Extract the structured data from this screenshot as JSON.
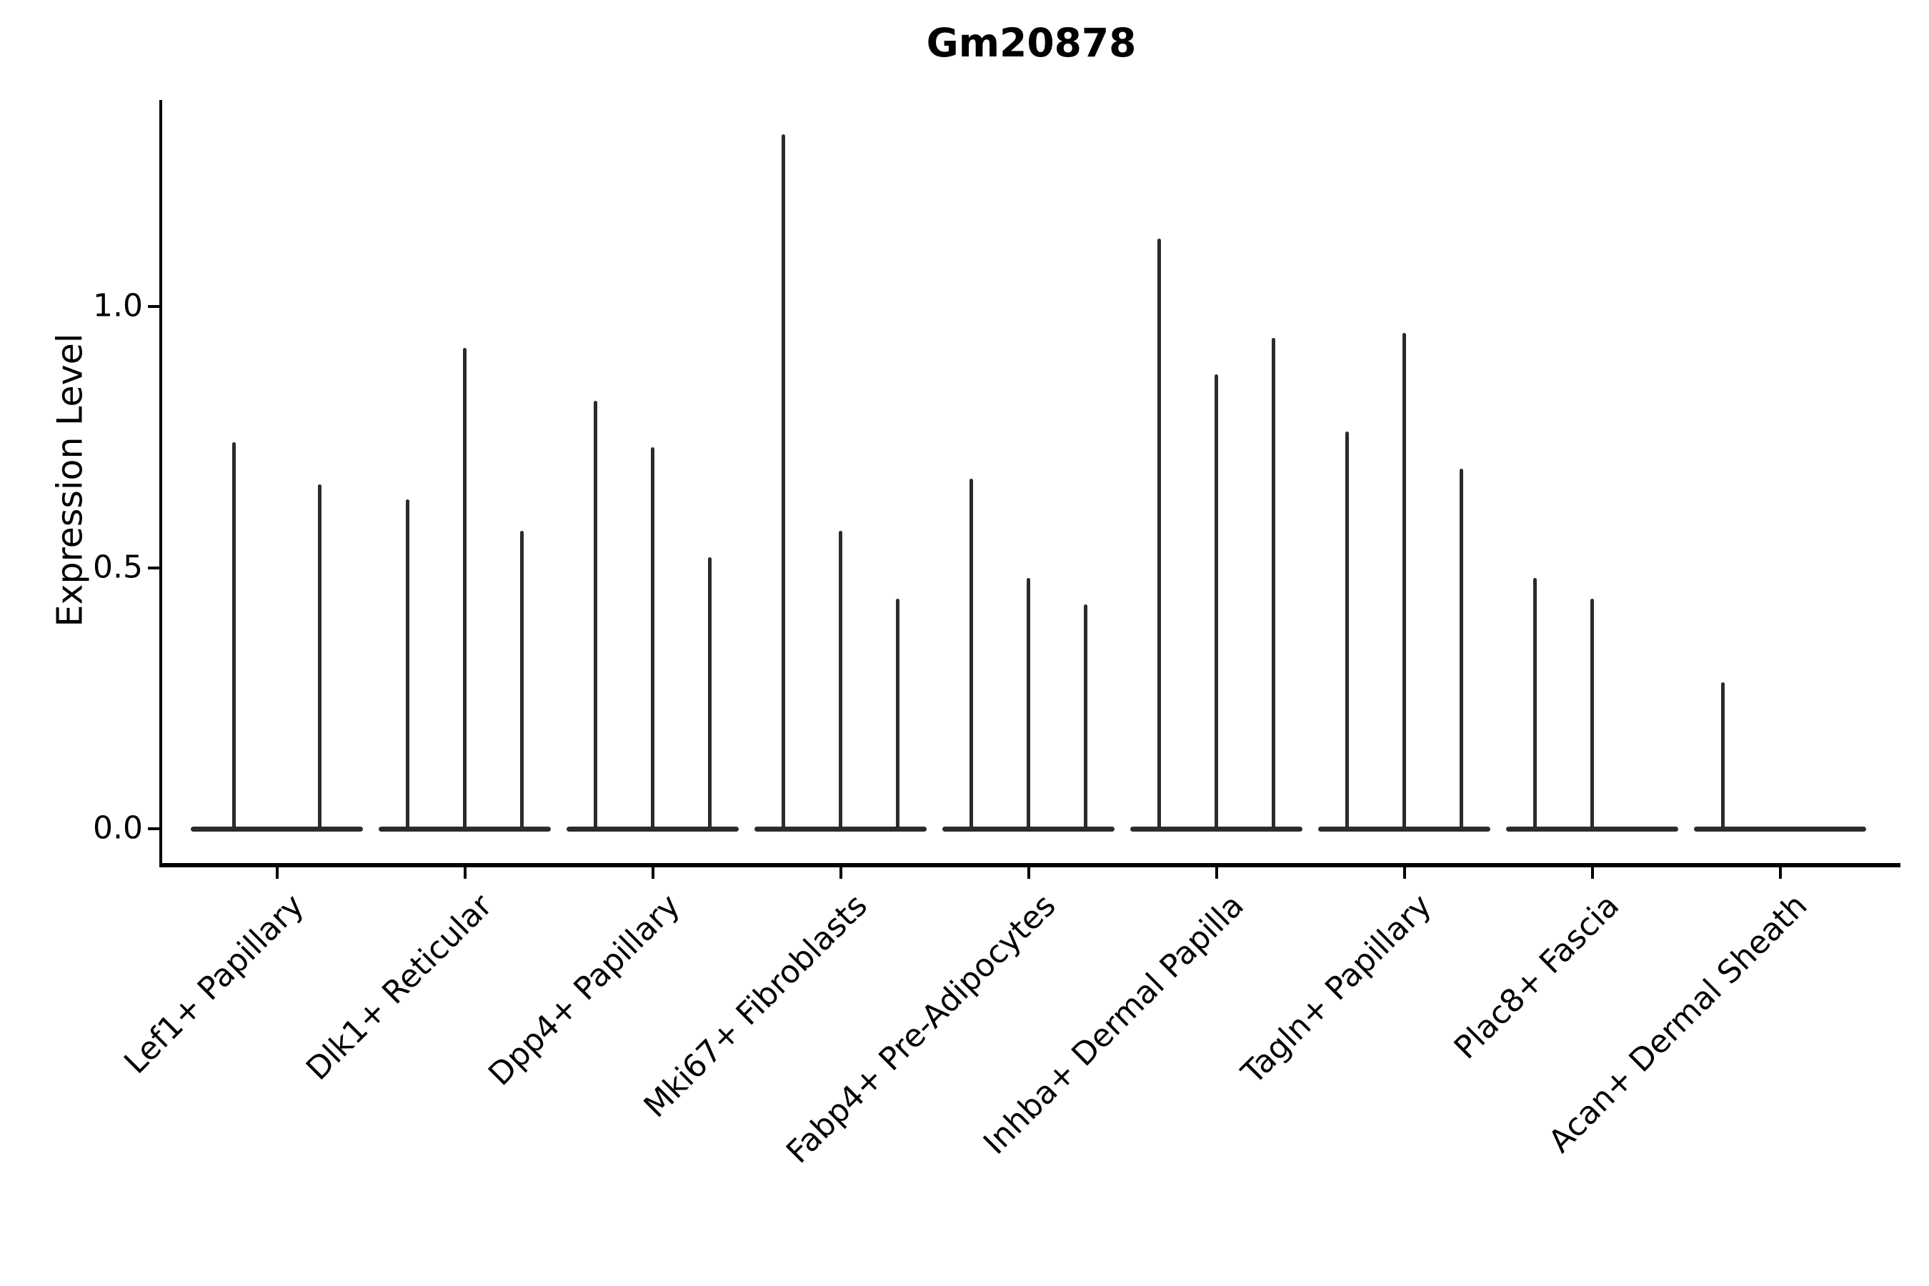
{
  "chart_data": {
    "type": "violin",
    "title": "Gm20878",
    "xlabel": "",
    "ylabel": "Expression Level",
    "ylim": [
      -0.07,
      1.4
    ],
    "grid": false,
    "legend": "none",
    "yticks": [
      {
        "value": 0.0,
        "label": "0.0"
      },
      {
        "value": 0.5,
        "label": "0.5"
      },
      {
        "value": 1.0,
        "label": "1.0"
      }
    ],
    "categories": [
      "Lef1+ Papillary",
      "Dlk1+ Reticular",
      "Dpp4+ Papillary",
      "Mki67+ Fibroblasts",
      "Fabp4+ Pre-Adipocytes",
      "Inhba+ Dermal Papilla",
      "Tagln+ Papillary",
      "Plac8+ Fascia",
      "Acan+ Dermal Sheath"
    ],
    "series": [
      {
        "category": "Lef1+ Papillary",
        "violin_max_values": [
          0.74,
          0.66
        ]
      },
      {
        "category": "Dlk1+ Reticular",
        "violin_max_values": [
          0.63,
          0.92,
          0.57
        ]
      },
      {
        "category": "Dpp4+ Papillary",
        "violin_max_values": [
          0.82,
          0.73,
          0.52
        ]
      },
      {
        "category": "Mki67+ Fibroblasts",
        "violin_max_values": [
          1.33,
          0.57,
          0.44
        ]
      },
      {
        "category": "Fabp4+ Pre-Adipocytes",
        "violin_max_values": [
          0.67,
          0.48,
          0.43
        ]
      },
      {
        "category": "Inhba+ Dermal Papilla",
        "violin_max_values": [
          1.13,
          0.87,
          0.94
        ]
      },
      {
        "category": "Tagln+ Papillary",
        "violin_max_values": [
          0.76,
          0.95,
          0.69
        ]
      },
      {
        "category": "Plac8+ Fascia",
        "violin_max_values": [
          0.48,
          0.44,
          null
        ]
      },
      {
        "category": "Acan+ Dermal Sheath",
        "violin_max_values": [
          0.28,
          null,
          null
        ]
      }
    ]
  },
  "colors": {
    "violin_stroke": "#2b2b2b",
    "axis": "#000000",
    "text": "#000000",
    "background": "#ffffff"
  }
}
